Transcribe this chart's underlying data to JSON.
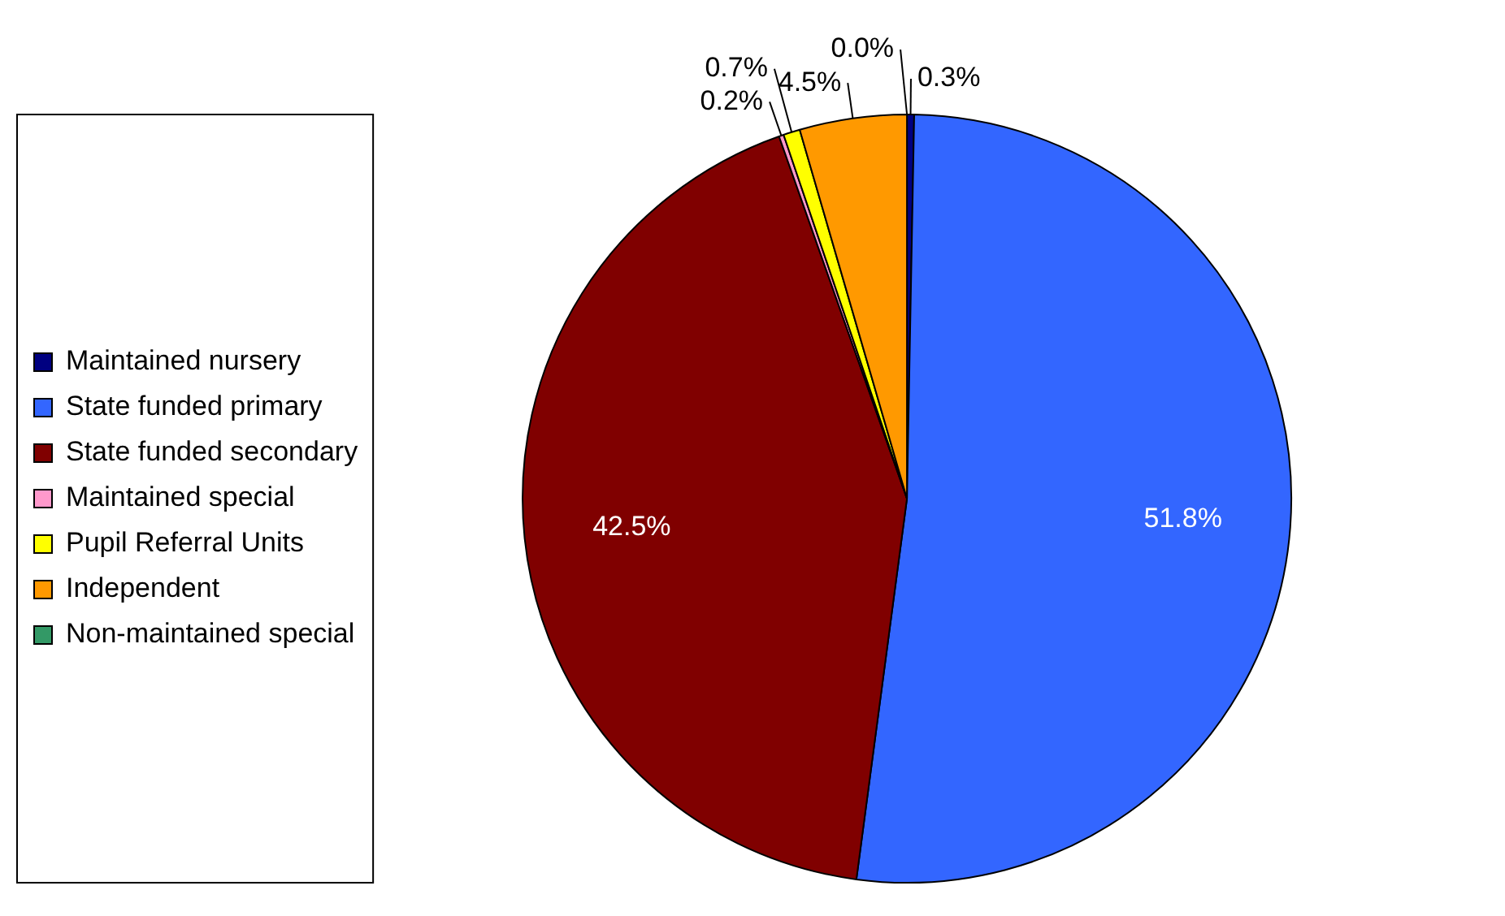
{
  "chart_data": {
    "type": "pie",
    "categories": [
      "Maintained nursery",
      "State funded primary",
      "State funded secondary",
      "Maintained special",
      "Pupil Referral Units",
      "Independent",
      "Non-maintained special"
    ],
    "values": [
      0.3,
      51.8,
      42.5,
      0.2,
      0.7,
      4.5,
      0.0
    ],
    "colors": [
      "#000080",
      "#3366ff",
      "#800000",
      "#ff99cc",
      "#ffff00",
      "#ff9900",
      "#339966"
    ],
    "value_labels": [
      "0.3%",
      "51.8%",
      "42.5%",
      "0.2%",
      "0.7%",
      "4.5%",
      "0.0%"
    ],
    "legend": "left"
  }
}
